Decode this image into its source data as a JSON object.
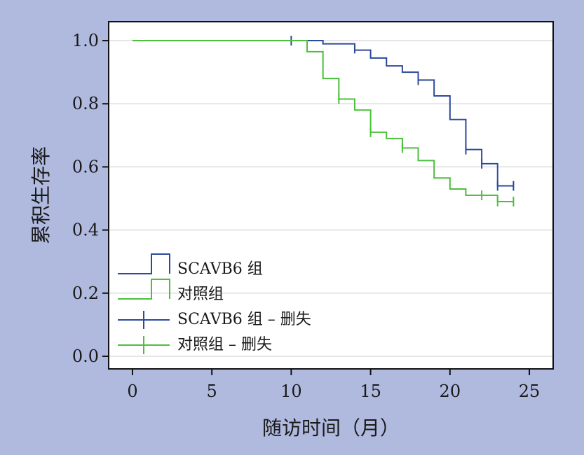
{
  "chart_data": {
    "type": "line",
    "subtype": "kaplan-meier-step",
    "xlabel": "随访时间（月）",
    "ylabel": "累积生存率",
    "xlim": [
      -1.5,
      26.5
    ],
    "ylim": [
      -0.04,
      1.06
    ],
    "xticks": [
      {
        "value": 0,
        "label": "0"
      },
      {
        "value": 5,
        "label": "5"
      },
      {
        "value": 10,
        "label": "10"
      },
      {
        "value": 15,
        "label": "15"
      },
      {
        "value": 20,
        "label": "20"
      },
      {
        "value": 25,
        "label": "25"
      }
    ],
    "yticks": [
      {
        "value": 0.0,
        "label": "0.0"
      },
      {
        "value": 0.2,
        "label": "0.2"
      },
      {
        "value": 0.4,
        "label": "0.4"
      },
      {
        "value": 0.6,
        "label": "0.6"
      },
      {
        "value": 0.8,
        "label": "0.8"
      },
      {
        "value": 1.0,
        "label": "1.0"
      }
    ],
    "grid": "horizontal",
    "legend_position": "bottom-left",
    "series": [
      {
        "name": "SCAVB6 组",
        "color": "#2c4a9a",
        "steps": [
          {
            "x": 0,
            "y": 1.0
          },
          {
            "x": 12,
            "y": 0.99
          },
          {
            "x": 14,
            "y": 0.97
          },
          {
            "x": 15,
            "y": 0.945
          },
          {
            "x": 16,
            "y": 0.92
          },
          {
            "x": 17,
            "y": 0.9
          },
          {
            "x": 18,
            "y": 0.875
          },
          {
            "x": 19,
            "y": 0.825
          },
          {
            "x": 20,
            "y": 0.75
          },
          {
            "x": 21,
            "y": 0.655
          },
          {
            "x": 22,
            "y": 0.61
          },
          {
            "x": 23,
            "y": 0.54
          }
        ],
        "end_x": 24,
        "censored_name": "SCAVB6 组 – 删失",
        "censored": [
          {
            "x": 10,
            "y": 1.0
          },
          {
            "x": 14,
            "y": 0.975
          },
          {
            "x": 18,
            "y": 0.875
          },
          {
            "x": 21,
            "y": 0.655
          },
          {
            "x": 22,
            "y": 0.61
          },
          {
            "x": 23,
            "y": 0.54
          },
          {
            "x": 24,
            "y": 0.54
          }
        ]
      },
      {
        "name": "对照组",
        "color": "#4cbf3c",
        "steps": [
          {
            "x": 0,
            "y": 1.0
          },
          {
            "x": 11,
            "y": 0.965
          },
          {
            "x": 12,
            "y": 0.88
          },
          {
            "x": 13,
            "y": 0.815
          },
          {
            "x": 14,
            "y": 0.78
          },
          {
            "x": 15,
            "y": 0.71
          },
          {
            "x": 16,
            "y": 0.69
          },
          {
            "x": 17,
            "y": 0.66
          },
          {
            "x": 18,
            "y": 0.62
          },
          {
            "x": 19,
            "y": 0.565
          },
          {
            "x": 20,
            "y": 0.53
          },
          {
            "x": 21,
            "y": 0.51
          },
          {
            "x": 23,
            "y": 0.49
          }
        ],
        "end_x": 24,
        "censored_name": "对照组 – 删失",
        "censored": [
          {
            "x": 13,
            "y": 0.815
          },
          {
            "x": 15,
            "y": 0.71
          },
          {
            "x": 17,
            "y": 0.66
          },
          {
            "x": 22,
            "y": 0.51
          },
          {
            "x": 23,
            "y": 0.49
          },
          {
            "x": 24,
            "y": 0.49
          }
        ]
      }
    ]
  }
}
